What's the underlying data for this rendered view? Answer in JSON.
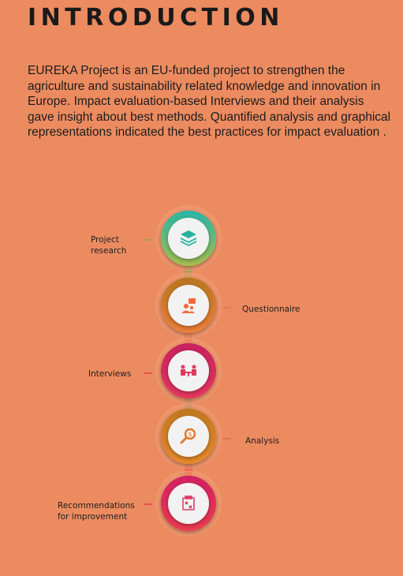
{
  "header": {
    "title": "INTRODUCTION",
    "paragraph": "EUREKA Project is an  EU-funded project to strengthen the agriculture and sustainability related knowledge and innovation in Europe. Impact evaluation-based Interviews and their analysis gave insight about best methods. Quantified analysis and graphical representations indicated the best practices for impact evaluation ."
  },
  "steps": [
    {
      "label": "Project\nresearch",
      "icon": "layers-icon",
      "color_a": "#27b6a6",
      "color_b": "#a6c04e"
    },
    {
      "label": "Questionnaire",
      "icon": "survey-person-icon",
      "color_a": "#b8761e",
      "color_b": "#f0803a"
    },
    {
      "label": "Interviews",
      "icon": "meeting-icon",
      "color_a": "#c7215f",
      "color_b": "#e8375e"
    },
    {
      "label": "Analysis",
      "icon": "magnifier-icon",
      "color_a": "#c0781e",
      "color_b": "#e98a2e"
    },
    {
      "label": "Recommendations\nfor improvement",
      "icon": "clipboard-icon",
      "color_a": "#d21f63",
      "color_b": "#ee3d4f"
    }
  ]
}
